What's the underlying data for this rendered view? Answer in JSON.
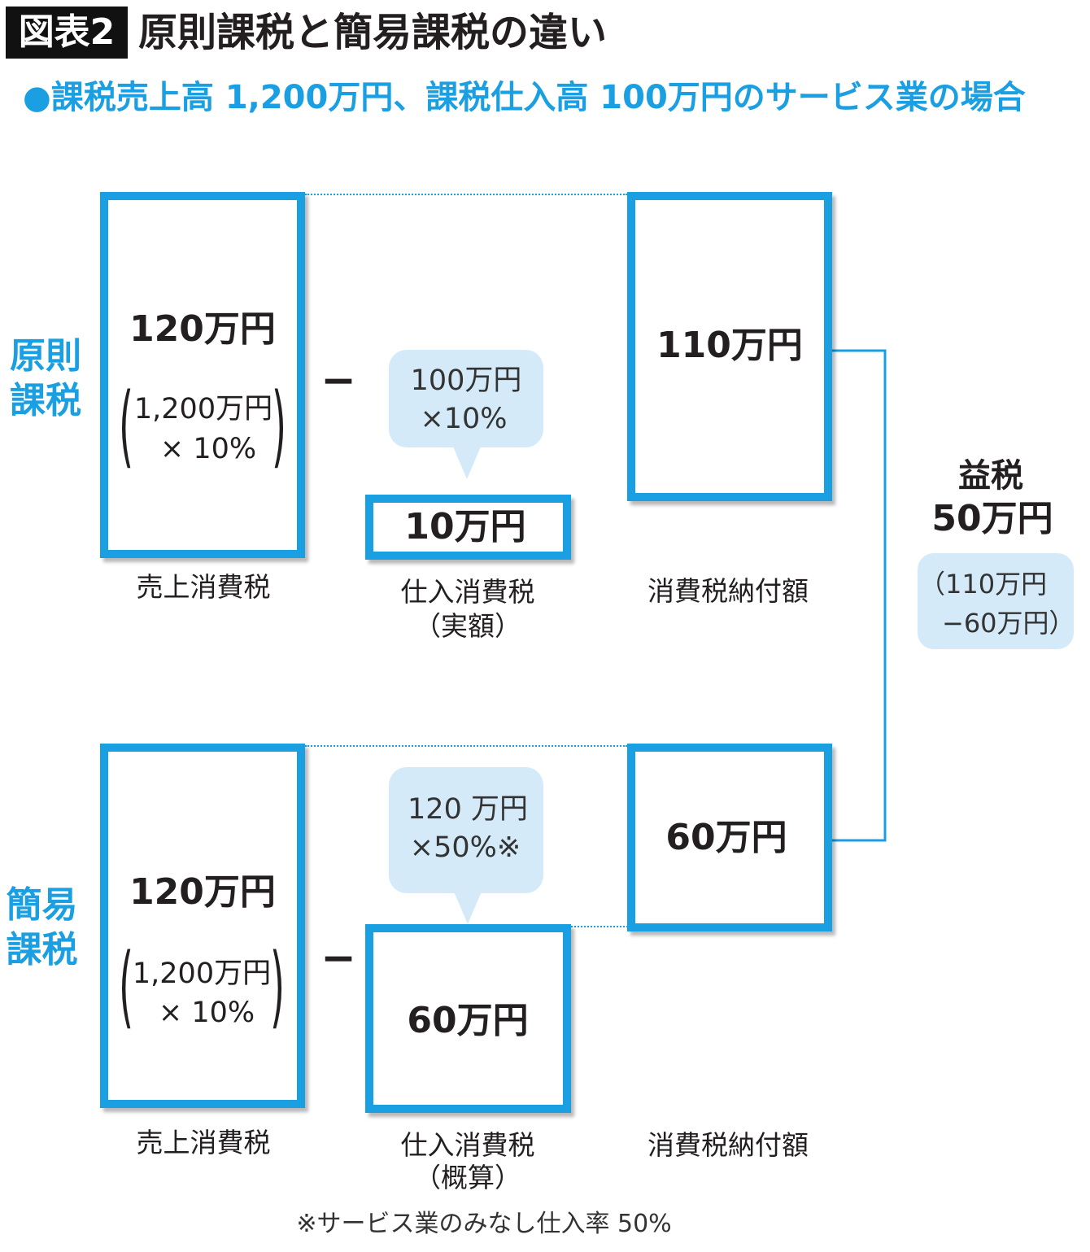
{
  "colors": {
    "accent": "#1b9fe3",
    "bubble": "#d5eaf8",
    "text": "#231f20",
    "badge_background": "#111111"
  },
  "header": {
    "badge": "図表2",
    "title": "原則課税と簡易課税の違い"
  },
  "subtitle": "●課税売上高 1,200万円、課税仕入高 100万円のサービス業の場合",
  "principle": {
    "label_line1": "原則",
    "label_line2": "課税",
    "sales_tax": {
      "amount": "120万円",
      "paren_open": "(",
      "formula_line1": "1,200万円",
      "formula_line2": "× 10%",
      "paren_close": ")",
      "caption": "売上消費税"
    },
    "operator": "−",
    "bubble": {
      "line1": "100万円",
      "line2": "×10%"
    },
    "purchase_tax": {
      "amount": "10万円",
      "caption_line1": "仕入消費税",
      "caption_line2": "（実額）"
    },
    "payment": {
      "amount": "110万円",
      "caption": "消費税納付額"
    }
  },
  "simplified": {
    "label_line1": "簡易",
    "label_line2": "課税",
    "sales_tax": {
      "amount": "120万円",
      "paren_open": "(",
      "formula_line1": "1,200万円",
      "formula_line2": "× 10%",
      "paren_close": ")",
      "caption": "売上消費税"
    },
    "operator": "−",
    "bubble": {
      "line1": "120 万円",
      "line2": "×50%※"
    },
    "purchase_tax": {
      "amount": "60万円",
      "caption_line1": "仕入消費税",
      "caption_line2": "（概算）"
    },
    "payment": {
      "amount": "60万円",
      "caption": "消費税納付額"
    }
  },
  "profit": {
    "label": "益税",
    "amount": "50万円",
    "formula_line1": "（110万円",
    "formula_line2": "−60万円）"
  },
  "footnote": "※サービス業のみなし仕入率 50%"
}
